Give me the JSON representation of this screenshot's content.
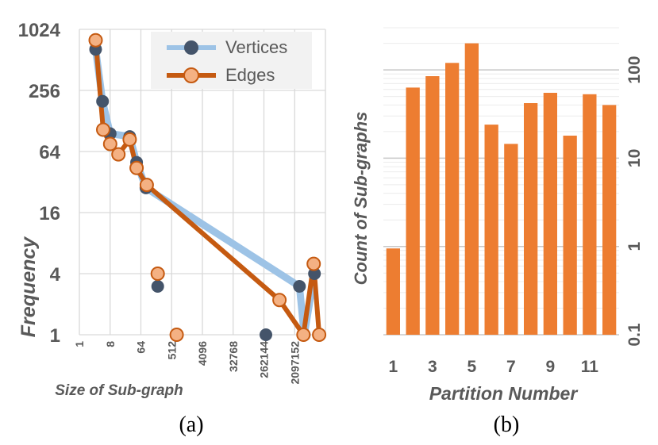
{
  "chart_data": [
    {
      "type": "line",
      "panel_label": "(a)",
      "xlabel": "Size of Sub-graph",
      "ylabel": "Frequency",
      "x_scale": "log2",
      "y_scale": "log2",
      "xlim": [
        1,
        16777216
      ],
      "ylim": [
        1,
        1024
      ],
      "x_ticks": [
        "1",
        "8",
        "64",
        "512",
        "4096",
        "32768",
        "262144",
        "2097152"
      ],
      "y_ticks": [
        "1024",
        "256",
        "64",
        "16",
        "4",
        "1"
      ],
      "grid": true,
      "legend": "top-right",
      "series": [
        {
          "name": "Vertices",
          "color": "#9dc3e6",
          "marker_color": "#44546a",
          "points": [
            {
              "x": 3,
              "y": 650
            },
            {
              "x": 4.8,
              "y": 200
            },
            {
              "x": 8,
              "y": 96
            },
            {
              "x": 30,
              "y": 90
            },
            {
              "x": 48,
              "y": 50
            },
            {
              "x": 90,
              "y": 28
            },
            {
              "x": 2900000,
              "y": 3
            },
            {
              "x": 4000000,
              "y": 1
            },
            {
              "x": 8000000,
              "y": 4
            }
          ],
          "isolated_points": [
            {
              "x": 200,
              "y": 3
            },
            {
              "x": 300000,
              "y": 1
            }
          ]
        },
        {
          "name": "Edges",
          "color": "#c55a11",
          "marker_color": "#f4b183",
          "points": [
            {
              "x": 3,
              "y": 800
            },
            {
              "x": 5,
              "y": 105
            },
            {
              "x": 8,
              "y": 76
            },
            {
              "x": 14,
              "y": 60
            },
            {
              "x": 30,
              "y": 84
            },
            {
              "x": 48,
              "y": 44
            },
            {
              "x": 95,
              "y": 30
            },
            {
              "x": 750000,
              "y": 2.2
            },
            {
              "x": 3800000,
              "y": 1
            },
            {
              "x": 7600000,
              "y": 5
            },
            {
              "x": 11000000,
              "y": 1
            }
          ],
          "isolated_points": [
            {
              "x": 200,
              "y": 4
            },
            {
              "x": 720,
              "y": 1
            }
          ]
        }
      ]
    },
    {
      "type": "bar",
      "panel_label": "(b)",
      "xlabel": "Partition Number",
      "ylabel": "Count of Sub-graphs",
      "y_scale": "log10",
      "ylim": [
        0.1,
        300
      ],
      "y_axis_position": "right",
      "bar_color": "#ed7d31",
      "x_tick_labels": [
        "1",
        "3",
        "5",
        "7",
        "9",
        "11"
      ],
      "y_ticks": [
        "100",
        "10",
        "1",
        "0.1"
      ],
      "grid": true,
      "categories": [
        1,
        2,
        3,
        4,
        5,
        6,
        7,
        8,
        9,
        10,
        11,
        12
      ],
      "values": [
        0.95,
        63,
        85,
        120,
        200,
        24,
        14.5,
        42,
        55,
        18,
        53,
        40
      ]
    }
  ]
}
